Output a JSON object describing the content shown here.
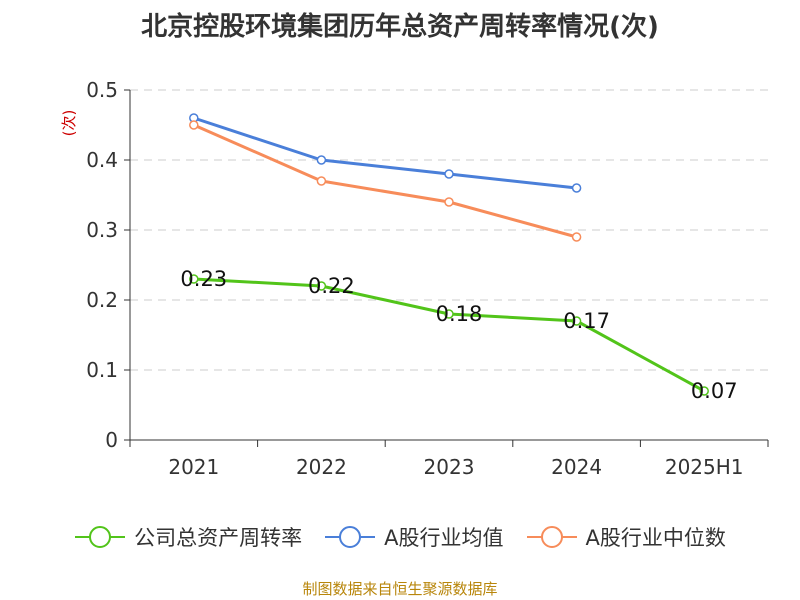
{
  "chart_data": {
    "type": "line",
    "title": "北京控股环境集团历年总资产周转率情况(次)",
    "ylabel": "(次)",
    "xlabel": "",
    "categories": [
      "2021",
      "2022",
      "2023",
      "2024",
      "2025H1"
    ],
    "ylim": [
      0,
      0.5
    ],
    "yticks": [
      0,
      0.1,
      0.2,
      0.3,
      0.4,
      0.5
    ],
    "ytick_labels": [
      "0",
      "0.1",
      "0.2",
      "0.3",
      "0.4",
      "0.5"
    ],
    "grid": true,
    "legend_position": "bottom",
    "series": [
      {
        "name": "公司总资产周转率",
        "color": "#52c41a",
        "values": [
          0.23,
          0.22,
          0.18,
          0.17,
          0.07
        ],
        "labels": [
          "0.23",
          "0.22",
          "0.18",
          "0.17",
          "0.07"
        ]
      },
      {
        "name": "A股行业均值",
        "color": "#4a7fd9",
        "values": [
          0.46,
          0.4,
          0.38,
          0.36,
          null
        ]
      },
      {
        "name": "A股行业中位数",
        "color": "#f78c5a",
        "values": [
          0.45,
          0.37,
          0.34,
          0.29,
          null
        ]
      }
    ],
    "source": "制图数据来自恒生聚源数据库"
  }
}
